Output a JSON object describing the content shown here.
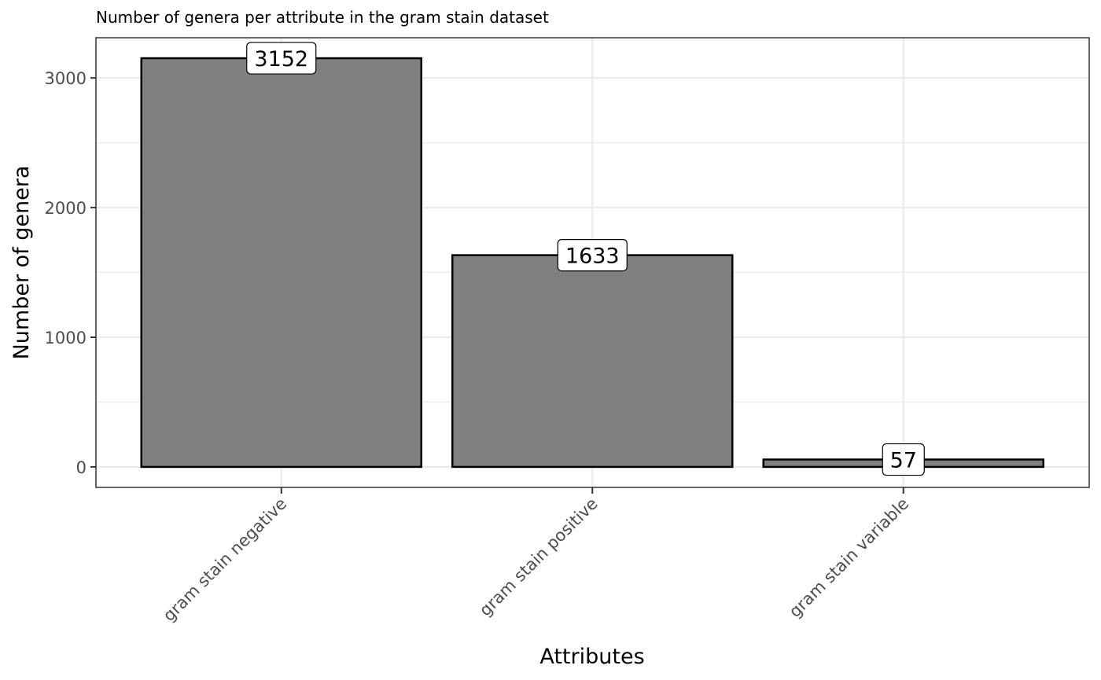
{
  "chart_data": {
    "type": "bar",
    "title": "Number of genera per attribute in the gram stain dataset",
    "xlabel": "Attributes",
    "ylabel": "Number of genera",
    "categories": [
      "gram stain negative",
      "gram stain positive",
      "gram stain variable"
    ],
    "values": [
      3152,
      1633,
      57
    ],
    "data_labels": [
      "3152",
      "1633",
      "57"
    ],
    "yticks": [
      0,
      1000,
      2000,
      3000
    ],
    "ytick_labels": [
      "0",
      "1000",
      "2000",
      "3000"
    ],
    "ylim": [
      -158,
      3310
    ],
    "grid": true,
    "legend": "none",
    "bar_fill": "#808080",
    "bar_stroke": "#000000",
    "grid_color": "#ebebeb",
    "panel_border_color": "#333333",
    "tick_label_color": "#4d4d4d"
  }
}
